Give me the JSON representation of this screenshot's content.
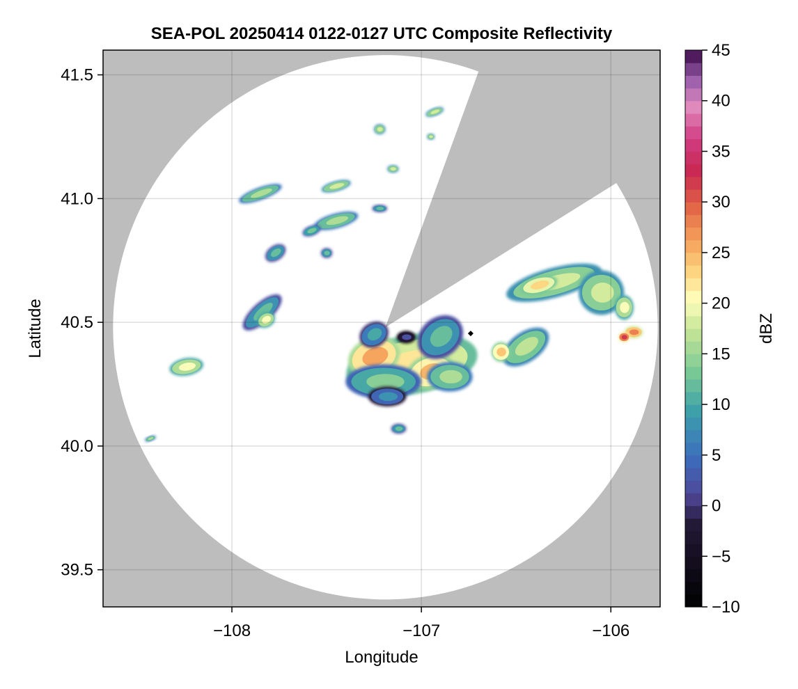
{
  "chart_data": {
    "type": "heatmap",
    "title": "SEA-POL 20250414 0122-0127 UTC Composite Reflectivity",
    "xlabel": "Longitude",
    "ylabel": "Latitude",
    "xlim": [
      -108.68,
      -105.74
    ],
    "ylim": [
      39.35,
      41.6
    ],
    "xticks": [
      -108,
      -107,
      -106
    ],
    "xtick_labels": [
      "−108",
      "−107",
      "−106"
    ],
    "yticks": [
      39.5,
      40.0,
      40.5,
      41.0,
      41.5
    ],
    "ytick_labels": [
      "39.5",
      "40.0",
      "40.5",
      "41.0",
      "41.5"
    ],
    "grid": true,
    "background_color": "#bdbdbd",
    "radar": {
      "center_lon": -107.19,
      "center_lat": 40.48,
      "radius_deg_lat": 1.1,
      "blocked_sector_deg": [
        20,
        58
      ]
    },
    "colorbar": {
      "label": "dBZ",
      "min": -10,
      "max": 45,
      "ticks": [
        -10,
        -5,
        0,
        5,
        10,
        15,
        20,
        25,
        30,
        35,
        40,
        45
      ],
      "tick_labels": [
        "−10",
        "−5",
        "0",
        "5",
        "10",
        "15",
        "20",
        "25",
        "30",
        "35",
        "40",
        "45"
      ],
      "colormap": "Spectral_r",
      "levels": 44
    },
    "echoes": [
      {
        "lon": -107.05,
        "lat": 40.33,
        "rx": 0.35,
        "ry": 0.12,
        "rot": -10,
        "dbz": 22
      },
      {
        "lon": -107.25,
        "lat": 40.36,
        "rx": 0.14,
        "ry": 0.08,
        "rot": -20,
        "dbz": 26
      },
      {
        "lon": -106.95,
        "lat": 40.3,
        "rx": 0.13,
        "ry": 0.07,
        "rot": -15,
        "dbz": 25
      },
      {
        "lon": -107.2,
        "lat": 40.26,
        "rx": 0.2,
        "ry": 0.07,
        "rot": 0,
        "dbz": 14
      },
      {
        "lon": -106.9,
        "lat": 40.44,
        "rx": 0.13,
        "ry": 0.08,
        "rot": -40,
        "dbz": 12
      },
      {
        "lon": -106.85,
        "lat": 40.28,
        "rx": 0.12,
        "ry": 0.06,
        "rot": 0,
        "dbz": 16
      },
      {
        "lon": -107.18,
        "lat": 40.2,
        "rx": 0.1,
        "ry": 0.04,
        "rot": 0,
        "dbz": 8
      },
      {
        "lon": -107.25,
        "lat": 40.45,
        "rx": 0.08,
        "ry": 0.05,
        "rot": -30,
        "dbz": 10
      },
      {
        "lon": -107.08,
        "lat": 40.44,
        "rx": 0.05,
        "ry": 0.025,
        "rot": 0,
        "dbz": 2
      },
      {
        "lon": -106.45,
        "lat": 40.4,
        "rx": 0.14,
        "ry": 0.06,
        "rot": -35,
        "dbz": 17
      },
      {
        "lon": -106.58,
        "lat": 40.38,
        "rx": 0.05,
        "ry": 0.04,
        "rot": 0,
        "dbz": 24
      },
      {
        "lon": -106.3,
        "lat": 40.66,
        "rx": 0.26,
        "ry": 0.06,
        "rot": -15,
        "dbz": 18
      },
      {
        "lon": -106.38,
        "lat": 40.65,
        "rx": 0.1,
        "ry": 0.035,
        "rot": -15,
        "dbz": 23
      },
      {
        "lon": -106.05,
        "lat": 40.62,
        "rx": 0.12,
        "ry": 0.09,
        "rot": 0,
        "dbz": 18
      },
      {
        "lon": -105.93,
        "lat": 40.56,
        "rx": 0.05,
        "ry": 0.05,
        "rot": 0,
        "dbz": 20
      },
      {
        "lon": -105.88,
        "lat": 40.46,
        "rx": 0.05,
        "ry": 0.025,
        "rot": 0,
        "dbz": 28
      },
      {
        "lon": -105.93,
        "lat": 40.44,
        "rx": 0.03,
        "ry": 0.02,
        "rot": 0,
        "dbz": 32
      },
      {
        "lon": -107.84,
        "lat": 40.54,
        "rx": 0.13,
        "ry": 0.04,
        "rot": -42,
        "dbz": 12
      },
      {
        "lon": -107.82,
        "lat": 40.51,
        "rx": 0.05,
        "ry": 0.03,
        "rot": -30,
        "dbz": 20
      },
      {
        "lon": -108.24,
        "lat": 40.32,
        "rx": 0.09,
        "ry": 0.035,
        "rot": -10,
        "dbz": 20
      },
      {
        "lon": -107.45,
        "lat": 40.91,
        "rx": 0.12,
        "ry": 0.03,
        "rot": -15,
        "dbz": 16
      },
      {
        "lon": -107.77,
        "lat": 40.78,
        "rx": 0.06,
        "ry": 0.03,
        "rot": -35,
        "dbz": 12
      },
      {
        "lon": -107.85,
        "lat": 41.02,
        "rx": 0.12,
        "ry": 0.025,
        "rot": -20,
        "dbz": 16
      },
      {
        "lon": -107.45,
        "lat": 41.05,
        "rx": 0.08,
        "ry": 0.02,
        "rot": -15,
        "dbz": 18
      },
      {
        "lon": -107.58,
        "lat": 40.87,
        "rx": 0.05,
        "ry": 0.02,
        "rot": -20,
        "dbz": 13
      },
      {
        "lon": -107.5,
        "lat": 40.78,
        "rx": 0.03,
        "ry": 0.02,
        "rot": 0,
        "dbz": 12
      },
      {
        "lon": -107.22,
        "lat": 40.96,
        "rx": 0.04,
        "ry": 0.015,
        "rot": 0,
        "dbz": 12
      },
      {
        "lon": -106.93,
        "lat": 41.35,
        "rx": 0.05,
        "ry": 0.015,
        "rot": -20,
        "dbz": 18
      },
      {
        "lon": -107.22,
        "lat": 41.28,
        "rx": 0.03,
        "ry": 0.02,
        "rot": 0,
        "dbz": 18
      },
      {
        "lon": -107.15,
        "lat": 41.12,
        "rx": 0.03,
        "ry": 0.015,
        "rot": 0,
        "dbz": 18
      },
      {
        "lon": -106.95,
        "lat": 41.25,
        "rx": 0.02,
        "ry": 0.012,
        "rot": 0,
        "dbz": 18
      },
      {
        "lon": -107.12,
        "lat": 40.07,
        "rx": 0.04,
        "ry": 0.02,
        "rot": 0,
        "dbz": 12
      },
      {
        "lon": -108.43,
        "lat": 40.03,
        "rx": 0.03,
        "ry": 0.01,
        "rot": -20,
        "dbz": 16
      }
    ],
    "marker": {
      "lon": -106.74,
      "lat": 40.455,
      "color": "#000000"
    }
  }
}
